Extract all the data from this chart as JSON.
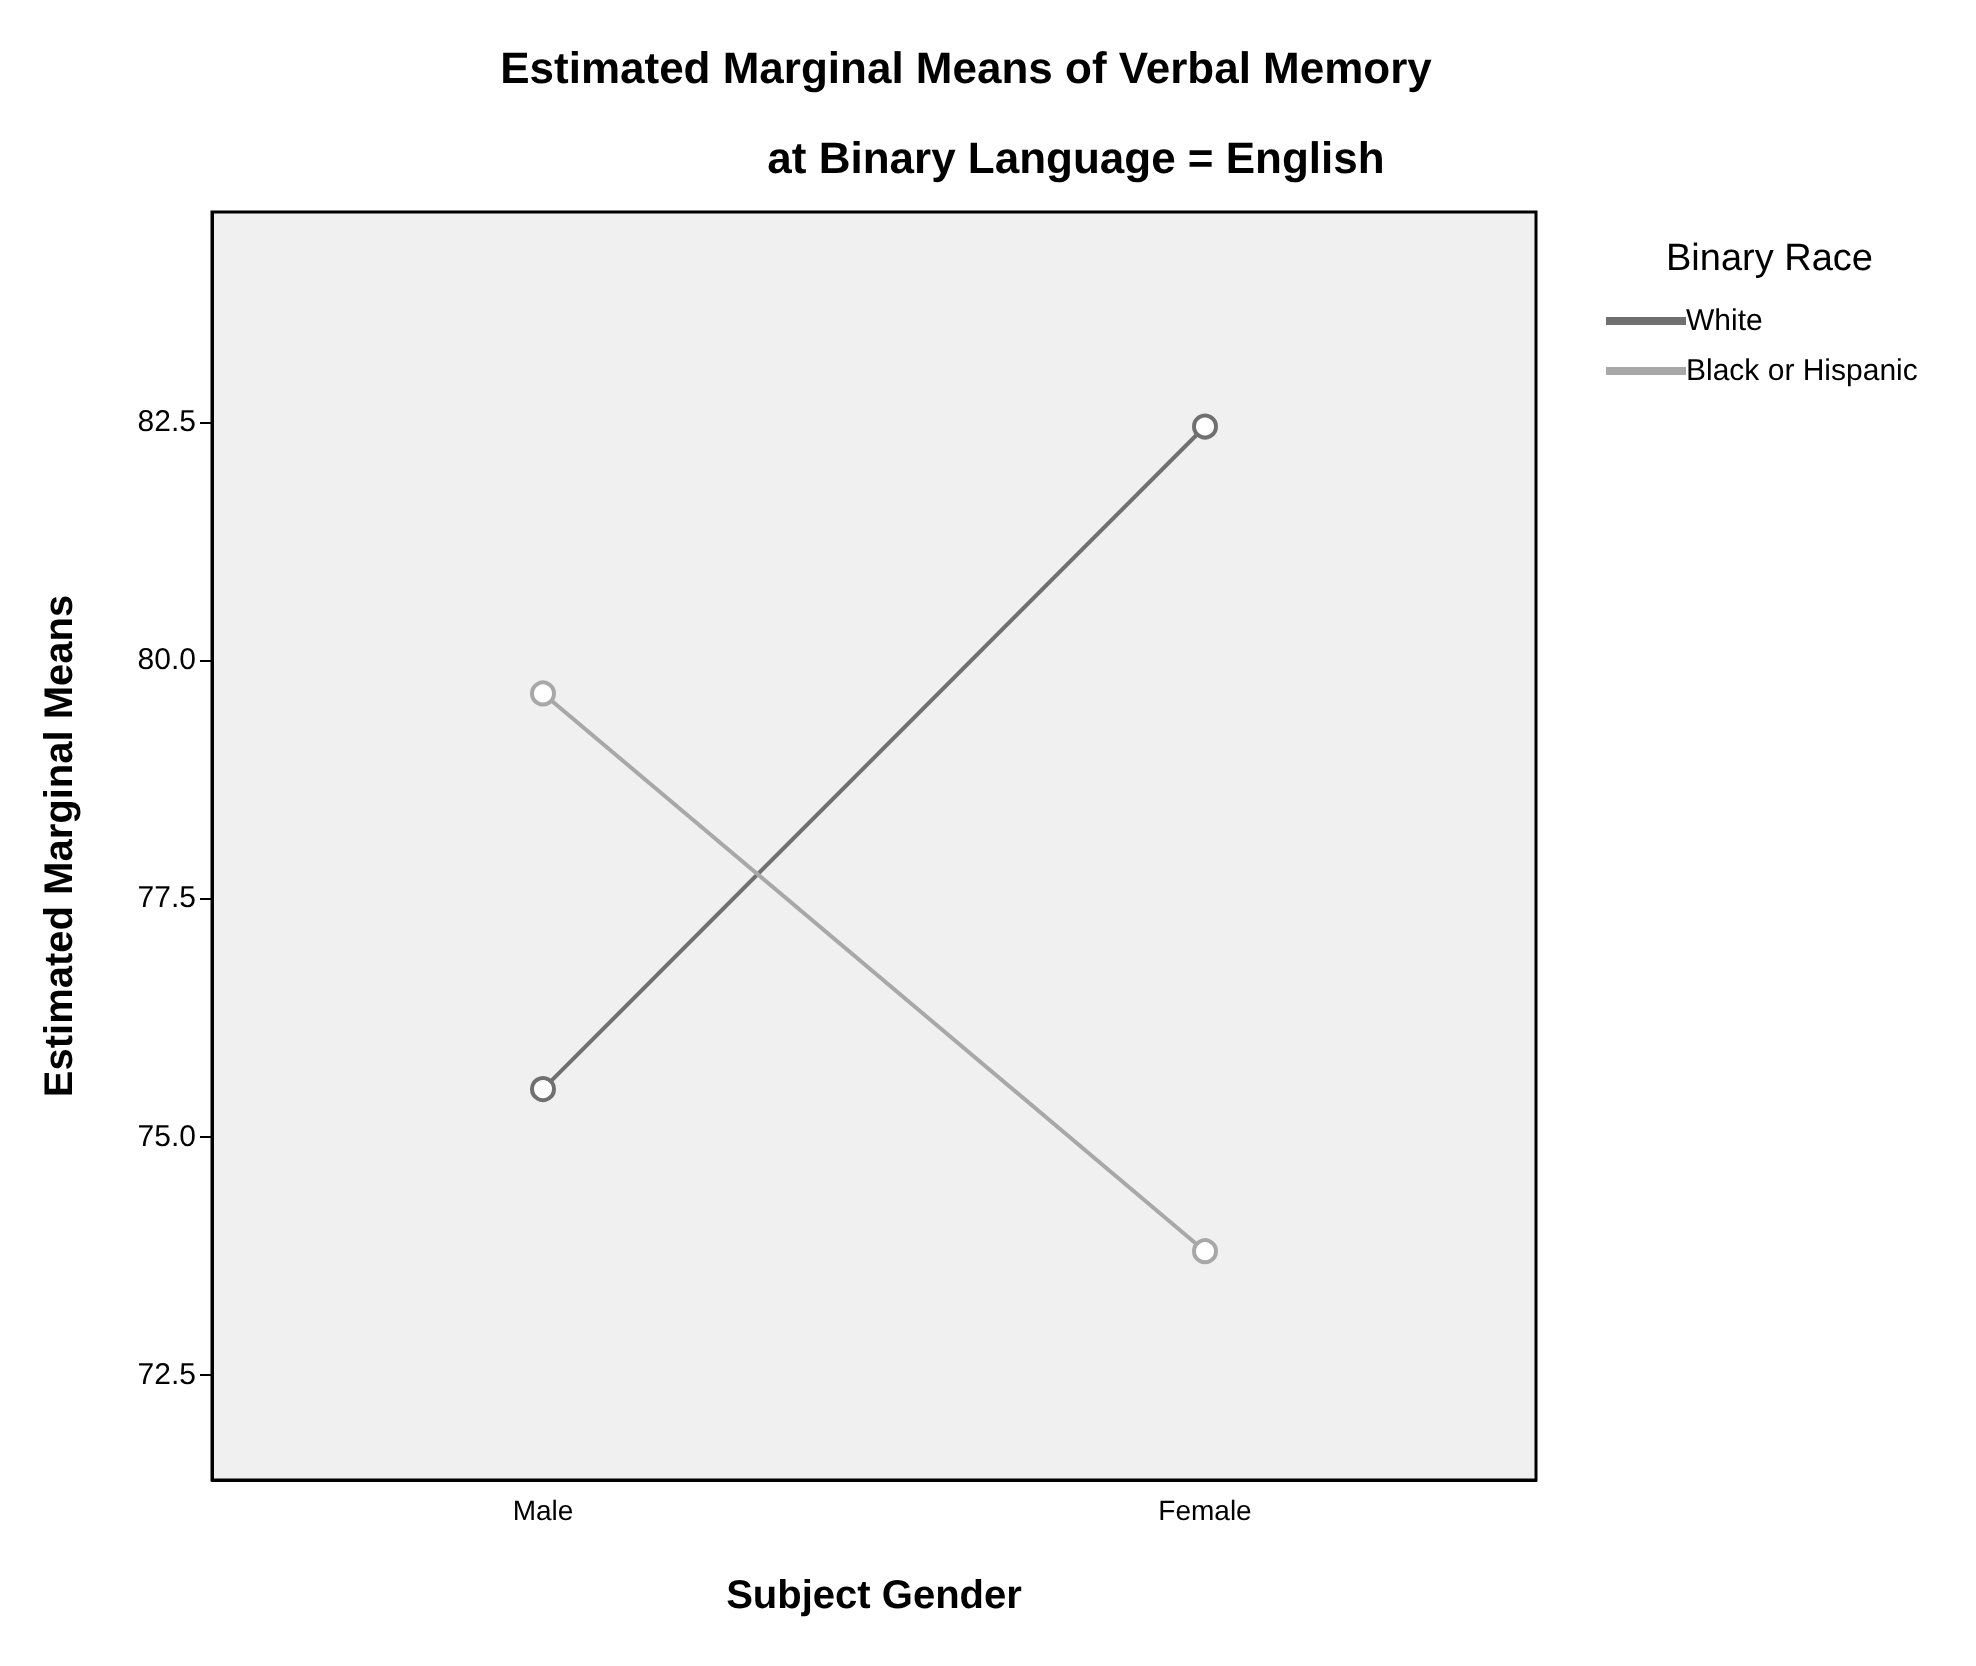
{
  "chart_data": {
    "type": "line",
    "title": "Estimated Marginal Means of Verbal Memory",
    "subtitle": "at Binary Language = English",
    "xlabel": "Subject Gender",
    "ylabel": "Estimated Marginal Means",
    "legend_title": "Binary Race",
    "categories": [
      "Male",
      "Female"
    ],
    "series": [
      {
        "name": "White",
        "color": "#707070",
        "values": [
          75.5,
          82.45
        ]
      },
      {
        "name": "Black or Hispanic",
        "color": "#a8a8a8",
        "values": [
          79.65,
          73.8
        ]
      }
    ],
    "ylim": [
      71.4,
      84.7
    ],
    "yticks": [
      72.5,
      {
        "value": 75,
        "label": "75.0"
      },
      77.5,
      {
        "value": 80,
        "label": "80.0"
      },
      82.5
    ],
    "grid": false,
    "legend": "top right",
    "marker": "circle",
    "line_style": "solid"
  }
}
